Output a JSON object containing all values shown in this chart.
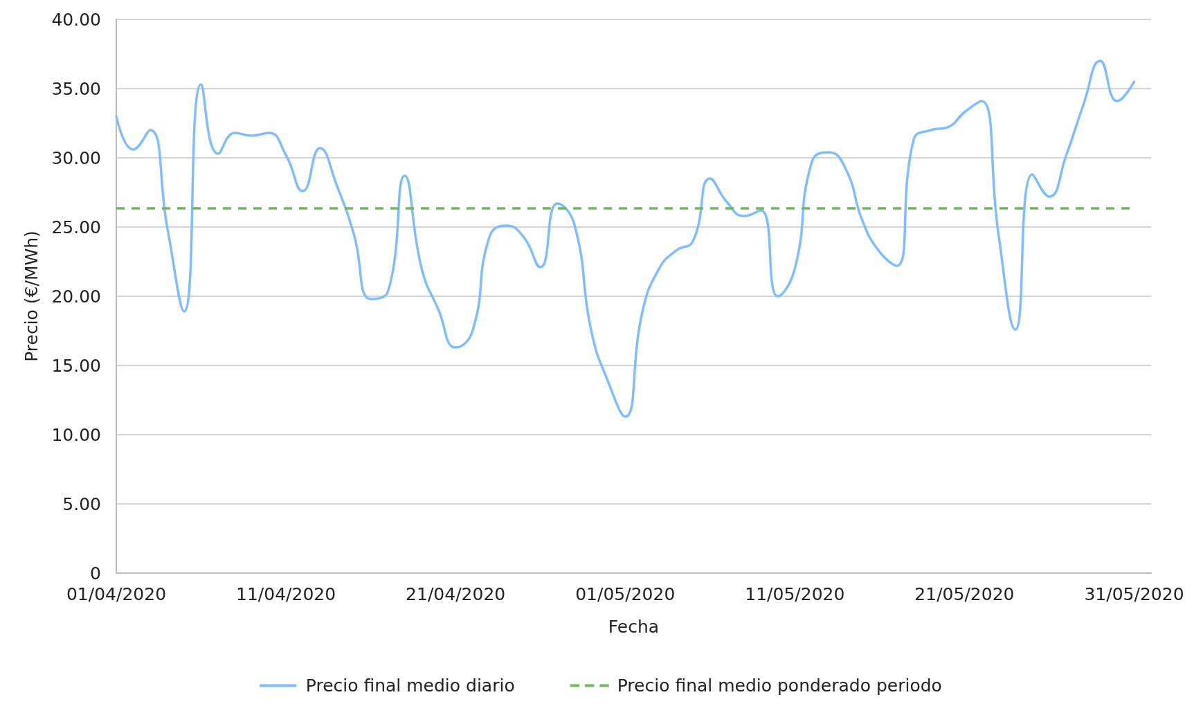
{
  "chart_data": {
    "type": "line",
    "xlabel": "Fecha",
    "ylabel": "Precio (€/MWh)",
    "x": [
      "2020-04-01",
      "2020-04-02",
      "2020-04-03",
      "2020-04-04",
      "2020-04-05",
      "2020-04-06",
      "2020-04-07",
      "2020-04-08",
      "2020-04-09",
      "2020-04-10",
      "2020-04-11",
      "2020-04-12",
      "2020-04-13",
      "2020-04-14",
      "2020-04-15",
      "2020-04-16",
      "2020-04-17",
      "2020-04-18",
      "2020-04-19",
      "2020-04-20",
      "2020-04-21",
      "2020-04-22",
      "2020-04-23",
      "2020-04-24",
      "2020-04-25",
      "2020-04-26",
      "2020-04-27",
      "2020-04-28",
      "2020-04-29",
      "2020-04-30",
      "2020-05-01",
      "2020-05-02",
      "2020-05-03",
      "2020-05-04",
      "2020-05-05",
      "2020-05-06",
      "2020-05-07",
      "2020-05-08",
      "2020-05-09",
      "2020-05-10",
      "2020-05-11",
      "2020-05-12",
      "2020-05-13",
      "2020-05-14",
      "2020-05-15",
      "2020-05-16",
      "2020-05-17",
      "2020-05-18",
      "2020-05-19",
      "2020-05-20",
      "2020-05-21",
      "2020-05-22",
      "2020-05-23",
      "2020-05-24",
      "2020-05-25",
      "2020-05-26",
      "2020-05-27",
      "2020-05-28",
      "2020-05-29",
      "2020-05-30",
      "2020-05-31"
    ],
    "series": [
      {
        "name": "Precio final medio diario",
        "color": "#7fbdff",
        "values": [
          33.0,
          30.6,
          32.0,
          25.0,
          18.9,
          35.3,
          30.3,
          31.8,
          31.6,
          31.8,
          30.2,
          27.6,
          30.7,
          28.0,
          24.5,
          19.8,
          20.3,
          28.7,
          22.0,
          19.0,
          16.3,
          17.5,
          24.3,
          25.1,
          24.3,
          22.1,
          26.7,
          25.2,
          17.5,
          13.8,
          11.3,
          18.8,
          22.0,
          23.3,
          24.0,
          28.5,
          26.8,
          25.8,
          26.2,
          20.0,
          22.0,
          29.7,
          30.4,
          29.2,
          25.4,
          23.2,
          22.2,
          31.3,
          32.0,
          32.2,
          33.3,
          34.1,
          24.5,
          17.6,
          28.8,
          27.2,
          30.2,
          33.8,
          37.0,
          34.1,
          35.5
        ]
      }
    ],
    "ref_lines": [
      {
        "axis": "y",
        "value": 26.35,
        "label": "Precio final medio ponderado periodo",
        "color": "#70b85e",
        "line_style": "dashed"
      }
    ],
    "xlim": [
      "2020-04-01",
      "2020-06-01"
    ],
    "xticks": [
      {
        "value": "2020-04-01",
        "label": "01/04/2020"
      },
      {
        "value": "2020-04-11",
        "label": "11/04/2020"
      },
      {
        "value": "2020-04-21",
        "label": "21/04/2020"
      },
      {
        "value": "2020-05-01",
        "label": "01/05/2020"
      },
      {
        "value": "2020-05-11",
        "label": "11/05/2020"
      },
      {
        "value": "2020-05-21",
        "label": "21/05/2020"
      },
      {
        "value": "2020-05-31",
        "label": "31/05/2020"
      }
    ],
    "ylim": [
      0,
      40
    ],
    "yticks": [
      0,
      {
        "value": 5,
        "label": "5.00"
      },
      {
        "value": 10,
        "label": "10.00"
      },
      {
        "value": 15,
        "label": "15.00"
      },
      {
        "value": 20,
        "label": "20.00"
      },
      {
        "value": 25,
        "label": "25.00"
      },
      {
        "value": 30,
        "label": "30.00"
      },
      {
        "value": 35,
        "label": "35.00"
      },
      {
        "value": 40,
        "label": "40.00"
      }
    ],
    "grid": "y",
    "legend": "bottom",
    "marker": "none",
    "line_style": "solid"
  }
}
